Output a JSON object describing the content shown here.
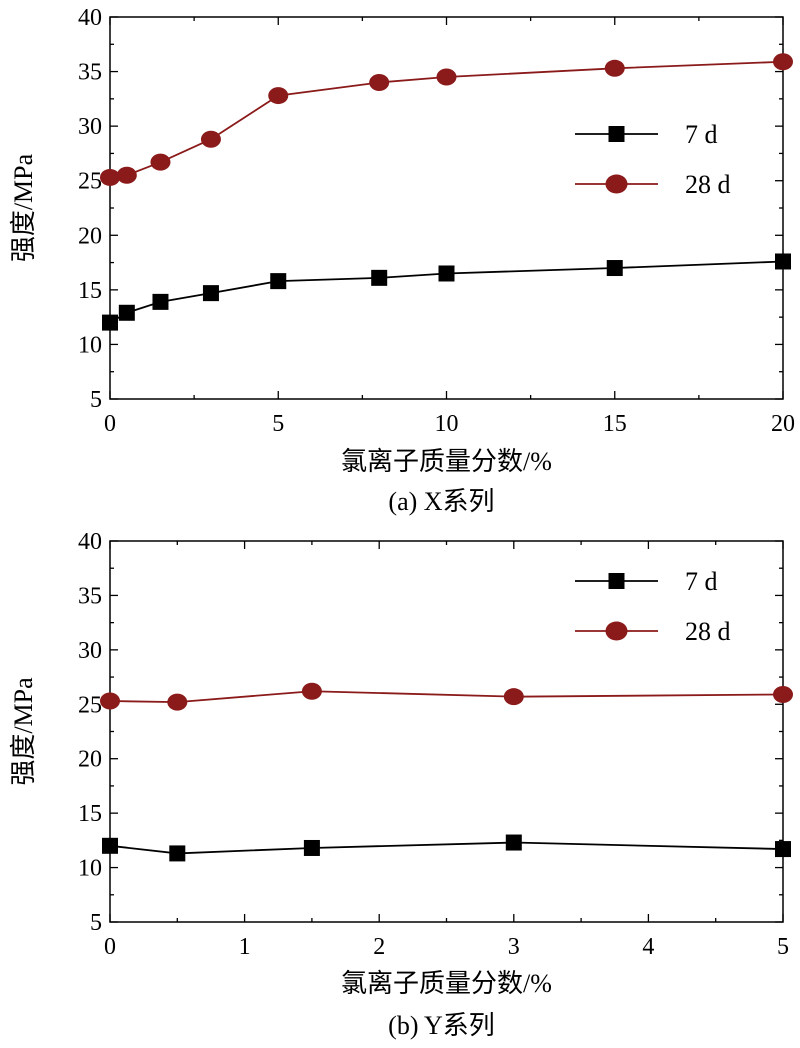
{
  "chart_data": [
    {
      "type": "line",
      "caption": "(a) X系列",
      "xlabel": "氯离子质量分数/%",
      "ylabel": "强度/MPa",
      "xlim": [
        0,
        20
      ],
      "ylim": [
        5,
        40
      ],
      "xticks": [
        0,
        5,
        10,
        15,
        20
      ],
      "yticks": [
        5,
        10,
        15,
        20,
        25,
        30,
        35,
        40
      ],
      "grid": false,
      "legend_position": "right",
      "series": [
        {
          "name": "7 d",
          "marker": "square",
          "color": "#000000",
          "x": [
            0,
            0.5,
            1.5,
            3,
            5,
            8,
            10,
            15,
            20
          ],
          "y": [
            12.0,
            12.9,
            13.9,
            14.7,
            15.8,
            16.1,
            16.5,
            17.0,
            17.6
          ]
        },
        {
          "name": "28 d",
          "marker": "circle",
          "color": "#8b1a1a",
          "x": [
            0,
            0.5,
            1.5,
            3,
            5,
            8,
            10,
            15,
            20
          ],
          "y": [
            25.3,
            25.5,
            26.7,
            28.8,
            32.8,
            34.0,
            34.5,
            35.3,
            35.9
          ]
        }
      ]
    },
    {
      "type": "line",
      "caption": "(b) Y系列",
      "xlabel": "氯离子质量分数/%",
      "ylabel": "强度/MPa",
      "xlim": [
        0,
        5
      ],
      "ylim": [
        5,
        40
      ],
      "xticks": [
        0,
        1,
        2,
        3,
        4,
        5
      ],
      "yticks": [
        5,
        10,
        15,
        20,
        25,
        30,
        35,
        40
      ],
      "grid": false,
      "legend_position": "top-right",
      "series": [
        {
          "name": "7 d",
          "marker": "square",
          "color": "#000000",
          "x": [
            0,
            0.5,
            1.5,
            3,
            5
          ],
          "y": [
            12.0,
            11.3,
            11.8,
            12.3,
            11.7
          ]
        },
        {
          "name": "28 d",
          "marker": "circle",
          "color": "#8b1a1a",
          "x": [
            0,
            0.5,
            1.5,
            3,
            5
          ],
          "y": [
            25.3,
            25.2,
            26.2,
            25.7,
            25.9
          ]
        }
      ]
    }
  ]
}
